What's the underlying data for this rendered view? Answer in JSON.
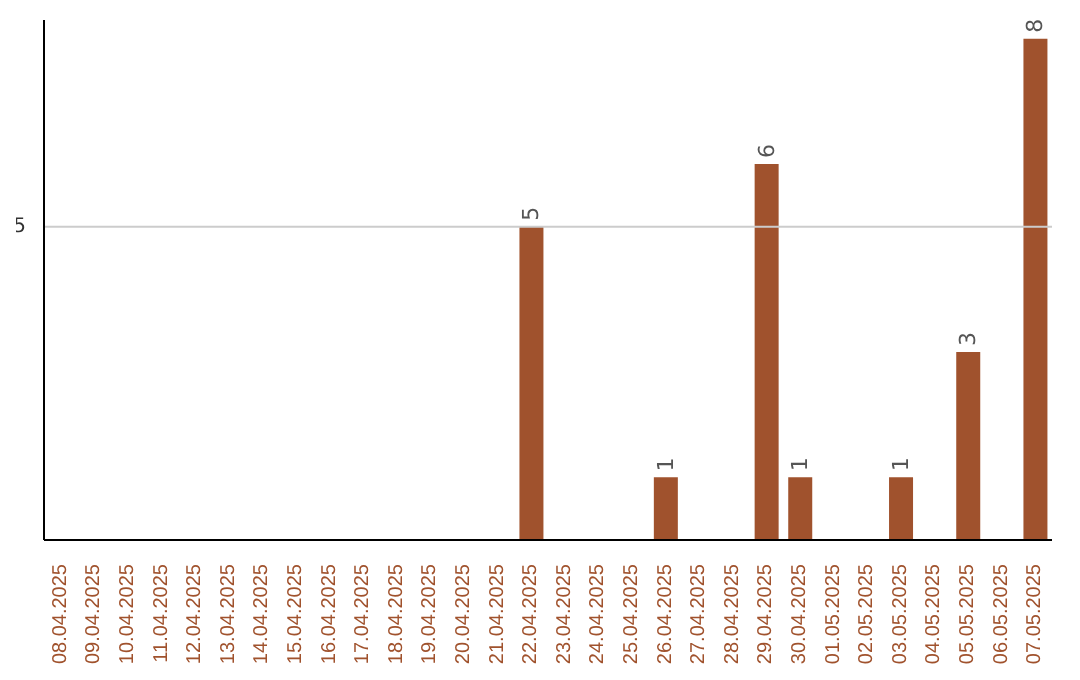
{
  "chart_data": {
    "type": "bar",
    "categories": [
      "08.04.2025",
      "09.04.2025",
      "10.04.2025",
      "11.04.2025",
      "12.04.2025",
      "13.04.2025",
      "14.04.2025",
      "15.04.2025",
      "16.04.2025",
      "17.04.2025",
      "18.04.2025",
      "19.04.2025",
      "20.04.2025",
      "21.04.2025",
      "22.04.2025",
      "23.04.2025",
      "24.04.2025",
      "25.04.2025",
      "26.04.2025",
      "27.04.2025",
      "28.04.2025",
      "29.04.2025",
      "30.04.2025",
      "01.05.2025",
      "02.05.2025",
      "03.05.2025",
      "04.05.2025",
      "05.05.2025",
      "06.05.2025",
      "07.05.2025"
    ],
    "values": [
      null,
      null,
      null,
      null,
      null,
      null,
      null,
      null,
      null,
      null,
      null,
      null,
      null,
      null,
      5,
      null,
      null,
      null,
      1,
      null,
      null,
      6,
      1,
      null,
      null,
      1,
      null,
      3,
      null,
      8
    ],
    "value_labels": [
      null,
      null,
      null,
      null,
      null,
      null,
      null,
      null,
      null,
      null,
      null,
      null,
      null,
      null,
      "5",
      null,
      null,
      null,
      "1",
      null,
      null,
      "6",
      "1",
      null,
      null,
      "1",
      null,
      "3",
      null,
      "8"
    ],
    "color": "#a0522d",
    "ylim": [
      0,
      8.3
    ],
    "yticks": [
      5
    ],
    "grid": "y"
  }
}
